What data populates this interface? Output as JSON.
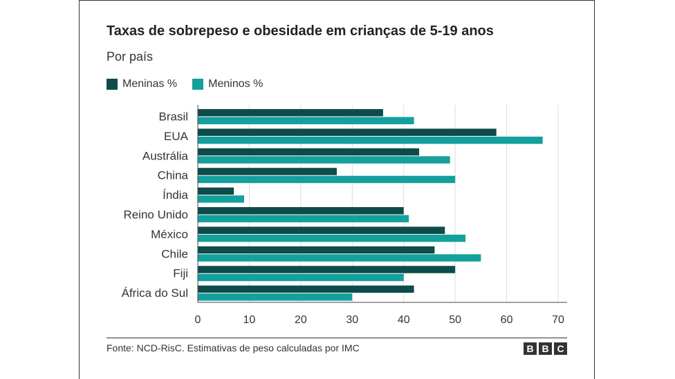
{
  "title": "Taxas de sobrepeso e obesidade em crianças de 5-19 anos",
  "subtitle": "Por país",
  "source": "Fonte: NCD-RisC. Estimativas de peso calculadas por IMC",
  "logo": [
    "B",
    "B",
    "C"
  ],
  "colors": {
    "meninas": "#0d4c4a",
    "meninos": "#14a09c",
    "grid": "#dddddd",
    "axis": "#444444"
  },
  "chart_data": {
    "type": "bar",
    "orientation": "horizontal",
    "categories": [
      "Brasil",
      "EUA",
      "Austrália",
      "China",
      "Índia",
      "Reino Unido",
      "México",
      "Chile",
      "Fiji",
      "África do Sul"
    ],
    "series": [
      {
        "name": "Meninas %",
        "values": [
          36,
          58,
          43,
          27,
          7,
          40,
          48,
          46,
          50,
          42
        ]
      },
      {
        "name": "Meninos %",
        "values": [
          42,
          67,
          49,
          50,
          9,
          41,
          52,
          55,
          40,
          30
        ]
      }
    ],
    "xlim": [
      0,
      70
    ],
    "xticks": [
      "0",
      "10",
      "20",
      "30",
      "40",
      "50",
      "60",
      "70"
    ],
    "grid": true,
    "legend": "top-left"
  }
}
